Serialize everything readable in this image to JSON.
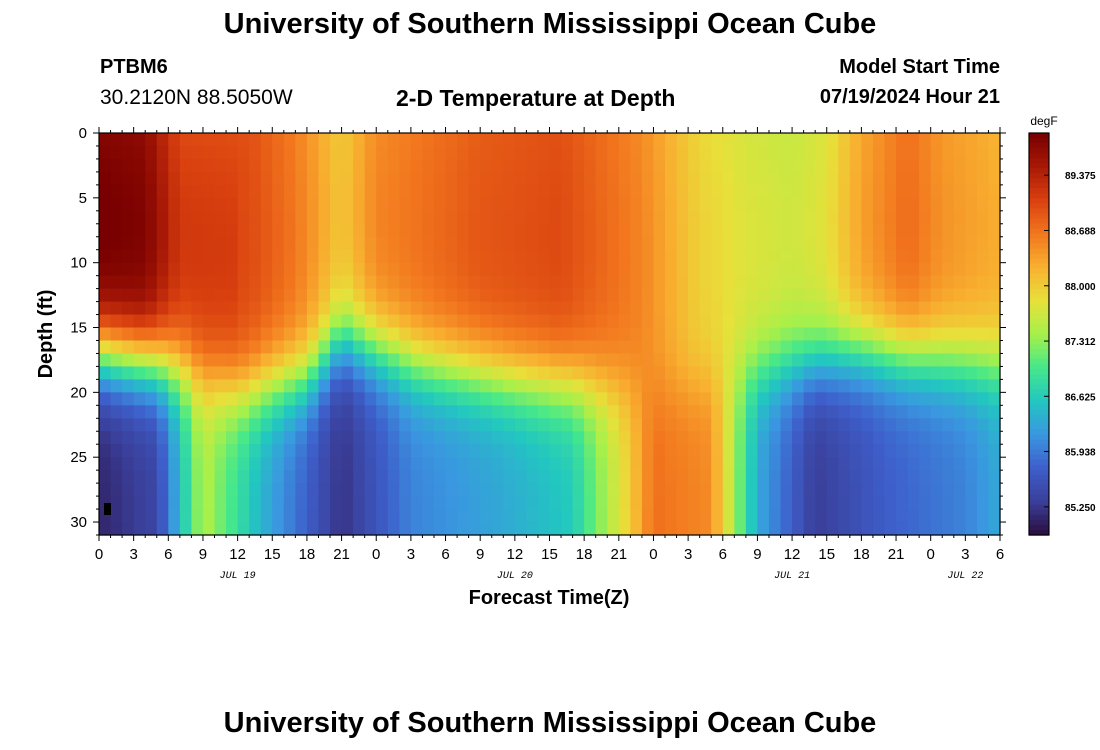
{
  "page": {
    "title_top": "University of Southern Mississippi Ocean Cube",
    "title_bottom": "University of Southern Mississippi Ocean Cube",
    "station_id": "PTBM6",
    "station_coords": "30.2120N  88.5050W",
    "chart_heading": "2-D Temperature at Depth",
    "model_label": "Model Start Time",
    "model_time": "07/19/2024 Hour 21"
  },
  "colors": {
    "palette": [
      "#2a0d3d",
      "#3a3f9a",
      "#3e5fcb",
      "#3a97e0",
      "#22c7c0",
      "#46e88a",
      "#a8f04a",
      "#e8e03a",
      "#f8b030",
      "#f2761e",
      "#d9400f",
      "#a81806",
      "#780000"
    ]
  },
  "chart_data": {
    "type": "heatmap",
    "title": "2-D Temperature at Depth",
    "xlabel": "Forecast Time(Z)",
    "ylabel": "Depth (ft)",
    "colorbar_unit": "degF",
    "x_ticks": [
      "0",
      "3",
      "6",
      "9",
      "12",
      "15",
      "18",
      "21",
      "0",
      "3",
      "6",
      "9",
      "12",
      "15",
      "18",
      "21",
      "0",
      "3",
      "6",
      "9",
      "12",
      "15",
      "18",
      "21",
      "0",
      "3",
      "6"
    ],
    "x_range_hours": [
      0,
      78
    ],
    "date_labels": [
      {
        "label": "JUL 19",
        "hour": 12
      },
      {
        "label": "JUL 20",
        "hour": 36
      },
      {
        "label": "JUL 21",
        "hour": 60
      },
      {
        "label": "JUL 22",
        "hour": 75
      }
    ],
    "y_ticks": [
      0,
      5,
      10,
      15,
      20,
      25,
      30
    ],
    "y_range_ft": [
      0,
      31
    ],
    "colorbar_ticks": [
      "89.375",
      "88.688",
      "88.000",
      "87.312",
      "86.625",
      "85.938",
      "85.250"
    ],
    "value_range_degF": [
      84.9,
      89.9
    ],
    "surface_layer_temps_degF": [
      {
        "hour": 0,
        "value": 89.8
      },
      {
        "hour": 4,
        "value": 89.7
      },
      {
        "hour": 7,
        "value": 89.0
      },
      {
        "hour": 13,
        "value": 88.95
      },
      {
        "hour": 17,
        "value": 88.6
      },
      {
        "hour": 21,
        "value": 88.0
      },
      {
        "hour": 24,
        "value": 88.5
      },
      {
        "hour": 33,
        "value": 88.85
      },
      {
        "hour": 40,
        "value": 88.95
      },
      {
        "hour": 47,
        "value": 88.5
      },
      {
        "hour": 52,
        "value": 87.9
      },
      {
        "hour": 56,
        "value": 87.7
      },
      {
        "hour": 60,
        "value": 87.6
      },
      {
        "hour": 63,
        "value": 87.75
      },
      {
        "hour": 66,
        "value": 88.3
      },
      {
        "hour": 70,
        "value": 88.7
      },
      {
        "hour": 73,
        "value": 88.4
      },
      {
        "hour": 78,
        "value": 88.2
      }
    ],
    "bottom_layer_temps_degF": [
      {
        "hour": 0,
        "value": 85.1
      },
      {
        "hour": 5,
        "value": 85.4
      },
      {
        "hour": 9,
        "value": 87.5
      },
      {
        "hour": 14,
        "value": 86.4
      },
      {
        "hour": 21,
        "value": 85.2
      },
      {
        "hour": 27,
        "value": 86.0
      },
      {
        "hour": 35,
        "value": 86.3
      },
      {
        "hour": 41,
        "value": 86.6
      },
      {
        "hour": 46,
        "value": 88.0
      },
      {
        "hour": 48,
        "value": 88.7
      },
      {
        "hour": 53,
        "value": 88.5
      },
      {
        "hour": 57,
        "value": 86.3
      },
      {
        "hour": 62,
        "value": 85.3
      },
      {
        "hour": 68,
        "value": 85.7
      },
      {
        "hour": 75,
        "value": 86.0
      },
      {
        "hour": 78,
        "value": 86.3
      }
    ],
    "thermocline_depth_ft": [
      {
        "hour": 0,
        "value": 17
      },
      {
        "hour": 6,
        "value": 18
      },
      {
        "hour": 12,
        "value": 20
      },
      {
        "hour": 18,
        "value": 19
      },
      {
        "hour": 21,
        "value": 16
      },
      {
        "hour": 28,
        "value": 18
      },
      {
        "hour": 36,
        "value": 19
      },
      {
        "hour": 42,
        "value": 19.5
      },
      {
        "hour": 47,
        "value": 20
      },
      {
        "hour": 54,
        "value": 19
      },
      {
        "hour": 60,
        "value": 18
      },
      {
        "hour": 66,
        "value": 17
      },
      {
        "hour": 72,
        "value": 17.5
      },
      {
        "hour": 78,
        "value": 18
      }
    ]
  }
}
